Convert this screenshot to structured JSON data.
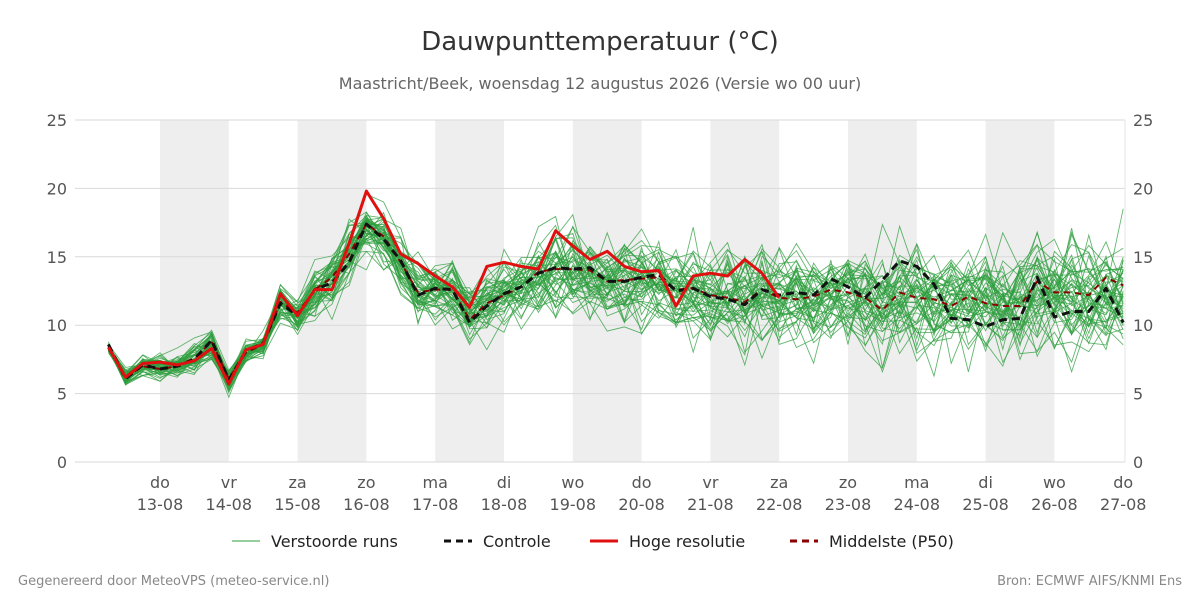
{
  "chart_data": {
    "type": "line",
    "title": "Dauwpunttemperatuur (°C)",
    "subtitle": "Maastricht/Beek, woensdag 12 augustus 2026 (Versie wo 00 uur)",
    "xlabel": "",
    "ylabel": "",
    "x_unit": "day (0 = 13-08 00:00)",
    "xlim": [
      -0.75,
      14.0
    ],
    "ylim": [
      0,
      25
    ],
    "yticks": [
      0,
      5,
      10,
      15,
      20,
      25
    ],
    "grid": true,
    "weekend_shading": true,
    "legend_position": "bottom",
    "x_ticks": [
      {
        "x": 0,
        "day": "do",
        "date": "13-08"
      },
      {
        "x": 1,
        "day": "vr",
        "date": "14-08"
      },
      {
        "x": 2,
        "day": "za",
        "date": "15-08"
      },
      {
        "x": 3,
        "day": "zo",
        "date": "16-08"
      },
      {
        "x": 4,
        "day": "ma",
        "date": "17-08"
      },
      {
        "x": 5,
        "day": "di",
        "date": "18-08"
      },
      {
        "x": 6,
        "day": "wo",
        "date": "19-08"
      },
      {
        "x": 7,
        "day": "do",
        "date": "20-08"
      },
      {
        "x": 8,
        "day": "vr",
        "date": "21-08"
      },
      {
        "x": 9,
        "day": "za",
        "date": "22-08"
      },
      {
        "x": 10,
        "day": "zo",
        "date": "23-08"
      },
      {
        "x": 11,
        "day": "ma",
        "date": "24-08"
      },
      {
        "x": 12,
        "day": "di",
        "date": "25-08"
      },
      {
        "x": 13,
        "day": "wo",
        "date": "26-08"
      },
      {
        "x": 14,
        "day": "do",
        "date": "27-08"
      }
    ],
    "shaded_days": [
      0,
      2,
      4,
      6,
      8,
      10,
      12
    ],
    "series": [
      {
        "name": "Hoge resolutie",
        "color": "#e01010",
        "style": "solid",
        "x": [
          -0.75,
          -0.5,
          -0.25,
          0,
          0.25,
          0.5,
          0.75,
          1,
          1.25,
          1.5,
          1.75,
          2,
          2.25,
          2.5,
          2.75,
          3,
          3.25,
          3.5,
          3.75,
          4,
          4.25,
          4.5,
          4.75,
          5,
          5.25,
          5.5,
          5.75,
          6,
          6.25,
          6.5,
          6.75,
          7,
          7.25,
          7.5,
          7.75,
          8,
          8.25,
          8.5,
          8.75,
          9,
          9.25,
          9.5
        ],
        "values": [
          8.4,
          6.2,
          7.2,
          7.3,
          7.1,
          7.4,
          8.3,
          5.7,
          8.2,
          8.6,
          12.3,
          10.7,
          12.6,
          12.6,
          16.0,
          19.8,
          17.8,
          15.2,
          14.5,
          13.6,
          12.8,
          11.3,
          14.3,
          14.6,
          14.3,
          14.1,
          16.9,
          15.8,
          14.8,
          15.4,
          14.3,
          13.9,
          14.0,
          11.4,
          13.6,
          13.8,
          13.6,
          14.8,
          13.8,
          12.0,
          null,
          null
        ]
      },
      {
        "name": "Controle",
        "color": "#111111",
        "style": "dashed",
        "x": [
          -0.75,
          -0.5,
          -0.25,
          0,
          0.25,
          0.5,
          0.75,
          1,
          1.25,
          1.5,
          1.75,
          2,
          2.25,
          2.5,
          2.75,
          3,
          3.25,
          3.5,
          3.75,
          4,
          4.25,
          4.5,
          4.75,
          5,
          5.25,
          5.5,
          5.75,
          6,
          6.25,
          6.5,
          6.75,
          7,
          7.25,
          7.5,
          7.75,
          8,
          8.25,
          8.5,
          8.75,
          9,
          9.25,
          9.5,
          9.75,
          10,
          10.25,
          10.5,
          10.75,
          11,
          11.25,
          11.5,
          11.75,
          12,
          12.25,
          12.5,
          12.75,
          13,
          13.25,
          13.5,
          13.75,
          14
        ],
        "values": [
          8.6,
          6.1,
          7.1,
          6.8,
          7.0,
          7.5,
          8.9,
          6.0,
          8.1,
          8.7,
          11.6,
          10.7,
          12.6,
          13.1,
          14.6,
          17.4,
          16.3,
          14.7,
          12.2,
          12.7,
          12.6,
          10.2,
          11.4,
          12.3,
          12.8,
          13.8,
          14.2,
          14.1,
          14.2,
          13.2,
          13.2,
          13.5,
          13.7,
          12.5,
          12.7,
          12.1,
          11.9,
          11.5,
          12.6,
          12.2,
          12.4,
          12.2,
          13.4,
          12.8,
          12.0,
          13.3,
          14.7,
          14.3,
          13.0,
          10.5,
          10.4,
          9.9,
          10.4,
          10.5,
          13.5,
          10.6,
          11.0,
          11.0,
          12.7,
          10.2
        ]
      },
      {
        "name": "Middelste (P50)",
        "color": "#8b0000",
        "style": "dashed",
        "x": [
          -0.75,
          -0.5,
          -0.25,
          0,
          0.25,
          0.5,
          0.75,
          1,
          1.25,
          1.5,
          1.75,
          2,
          2.25,
          2.5,
          2.75,
          3,
          3.25,
          3.5,
          3.75,
          4,
          4.25,
          4.5,
          4.75,
          5,
          5.25,
          5.5,
          5.75,
          6,
          6.25,
          6.5,
          6.75,
          7,
          7.25,
          7.5,
          7.75,
          8,
          8.25,
          8.5,
          8.75,
          9,
          9.25,
          9.5,
          9.75,
          10,
          10.25,
          10.5,
          10.75,
          11,
          11.25,
          11.5,
          11.75,
          12,
          12.25,
          12.5,
          12.75,
          13,
          13.25,
          13.5,
          13.75,
          14
        ],
        "values": [
          8.3,
          6.2,
          7.0,
          6.8,
          7.0,
          7.6,
          8.8,
          6.1,
          8.0,
          8.6,
          11.7,
          10.9,
          12.6,
          13.5,
          15.2,
          17.4,
          16.5,
          14.6,
          12.4,
          12.6,
          12.6,
          10.4,
          11.6,
          12.2,
          12.8,
          13.9,
          14.1,
          14.1,
          14.0,
          13.2,
          13.3,
          13.4,
          13.5,
          12.6,
          12.7,
          12.2,
          12.0,
          11.7,
          12.6,
          12.0,
          11.9,
          12.1,
          12.6,
          12.4,
          12.0,
          11.1,
          12.4,
          12.0,
          11.9,
          11.4,
          12.1,
          11.6,
          11.4,
          11.4,
          13.2,
          12.4,
          12.4,
          12.2,
          13.5,
          12.9
        ]
      }
    ],
    "ensemble": {
      "name": "Verstoorde runs",
      "color": "#2e9e3e",
      "count": 50,
      "x_start": -0.75,
      "x_step": 0.25,
      "mean": [
        8.4,
        6.2,
        7.1,
        7.0,
        7.1,
        7.5,
        8.6,
        6.0,
        8.1,
        8.6,
        11.8,
        10.8,
        12.4,
        13.5,
        15.4,
        17.0,
        16.2,
        14.4,
        12.6,
        12.4,
        12.6,
        10.8,
        11.8,
        12.4,
        12.9,
        13.6,
        14.0,
        13.9,
        13.8,
        13.3,
        13.2,
        13.3,
        13.3,
        12.5,
        12.5,
        12.2,
        12.0,
        11.8,
        12.3,
        12.0,
        12.0,
        12.0,
        12.3,
        12.2,
        12.0,
        11.6,
        12.0,
        12.0,
        11.8,
        11.6,
        11.8,
        11.8,
        11.6,
        11.6,
        12.4,
        12.2,
        12.2,
        12.0,
        12.4,
        12.2
      ],
      "spread": [
        0.3,
        0.6,
        0.6,
        0.7,
        0.7,
        0.8,
        1.0,
        0.8,
        0.7,
        0.8,
        1.2,
        1.1,
        1.4,
        1.7,
        1.8,
        1.6,
        1.7,
        1.9,
        1.8,
        1.8,
        1.8,
        1.9,
        2.0,
        2.1,
        2.2,
        2.3,
        2.4,
        2.4,
        2.4,
        2.4,
        2.4,
        2.5,
        2.5,
        2.5,
        2.6,
        2.6,
        2.7,
        2.7,
        2.7,
        2.8,
        2.8,
        2.8,
        2.9,
        2.9,
        2.9,
        3.0,
        3.0,
        3.0,
        3.0,
        3.0,
        3.1,
        3.1,
        3.1,
        3.1,
        3.1,
        3.2,
        3.2,
        3.2,
        3.2,
        3.2
      ]
    }
  },
  "legend": [
    {
      "label": "Verstoorde runs",
      "color": "#2e9e3e",
      "style": "thin"
    },
    {
      "label": "Controle",
      "color": "#111111",
      "style": "dashed"
    },
    {
      "label": "Hoge resolutie",
      "color": "#e01010",
      "style": "solid"
    },
    {
      "label": "Middelste (P50)",
      "color": "#8b0000",
      "style": "dashed"
    }
  ],
  "footer": {
    "left": "Gegenereerd door MeteoVPS (meteo-service.nl)",
    "right": "Bron: ECMWF AIFS/KNMI Ens"
  }
}
